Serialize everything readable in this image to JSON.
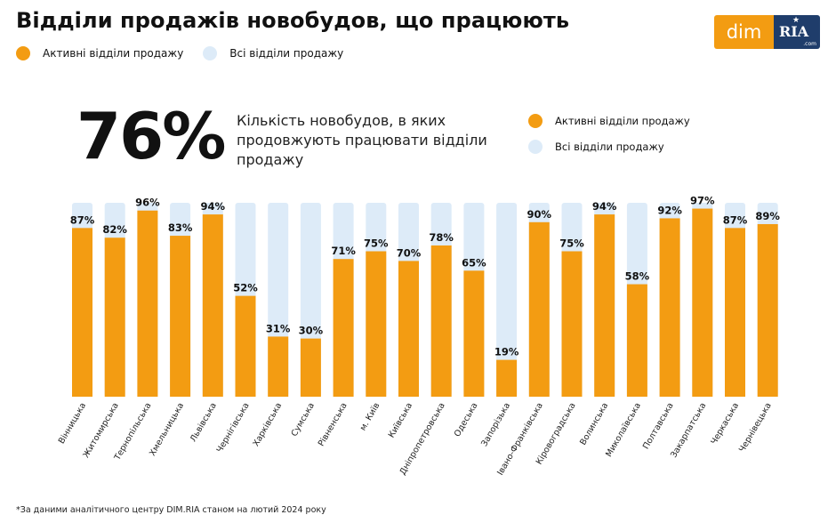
{
  "header": {
    "title": "Відділи продажів новобудов, що працюють"
  },
  "legend_top": [
    {
      "label": "Активні відділи продажу",
      "color": "#F39C12"
    },
    {
      "label": "Всі відділи продажу",
      "color": "#DDEBF8"
    }
  ],
  "logo": {
    "dim": "dim",
    "ria": "RIA",
    "com": ".com",
    "star": "★"
  },
  "summary": {
    "value": "76%",
    "description": "Кількість новобудов, в яких продовжують працювати відділи продажу"
  },
  "legend_right": [
    {
      "label": "Активні відділи продажу",
      "color": "#F39C12"
    },
    {
      "label": "Всі відділи продажу",
      "color": "#DDEBF8"
    }
  ],
  "chart_data": {
    "type": "bar",
    "categories": [
      "Вінницька",
      "Житомирська",
      "Тернопільська",
      "Хмельницька",
      "Львівська",
      "Чернігівська",
      "Харківська",
      "Сумська",
      "Рівненська",
      "м. Київ",
      "Київська",
      "Дніпропетровська",
      "Одеська",
      "Запорізька",
      "Івано-Франківська",
      "Кіровоградська",
      "Волинська",
      "Миколаївська",
      "Полтавська",
      "Закарпатська",
      "Черкаська",
      "Чернівецька"
    ],
    "series": [
      {
        "name": "Активні відділи продажу",
        "color": "#F39C12",
        "values": [
          87,
          82,
          96,
          83,
          94,
          52,
          31,
          30,
          71,
          75,
          70,
          78,
          65,
          19,
          90,
          75,
          94,
          58,
          92,
          97,
          87,
          89
        ]
      },
      {
        "name": "Всі відділи продажу",
        "color": "#DDEBF8",
        "values": [
          100,
          100,
          100,
          100,
          100,
          100,
          100,
          100,
          100,
          100,
          100,
          100,
          100,
          100,
          100,
          100,
          100,
          100,
          100,
          100,
          100,
          100
        ]
      }
    ],
    "value_labels": [
      "87%",
      "82%",
      "96%",
      "83%",
      "94%",
      "52%",
      "31%",
      "30%",
      "71%",
      "75%",
      "70%",
      "78%",
      "65%",
      "19%",
      "90%",
      "75%",
      "94%",
      "58%",
      "92%",
      "97%",
      "87%",
      "89%"
    ],
    "ylim": [
      0,
      100
    ]
  },
  "footnote": "*За даними аналітичного центру DIM.RIA станом на лютий 2024 року"
}
